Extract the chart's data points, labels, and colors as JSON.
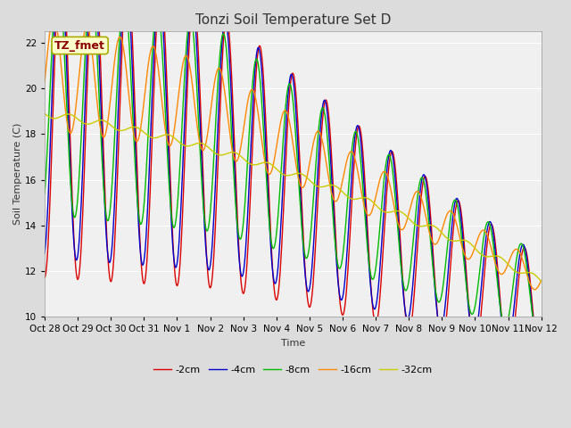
{
  "title": "Tonzi Soil Temperature Set D",
  "xlabel": "Time",
  "ylabel": "Soil Temperature (C)",
  "ylim": [
    10,
    22.5
  ],
  "annotation_text": "TZ_fmet",
  "annotation_color": "#8B0000",
  "annotation_bg": "#FFFFCC",
  "annotation_border": "#AAAA00",
  "series_colors": [
    "#DD0000",
    "#0000CC",
    "#00BB00",
    "#FF8800",
    "#CCCC00"
  ],
  "series_labels": [
    "-2cm",
    "-4cm",
    "-8cm",
    "-16cm",
    "-32cm"
  ],
  "tick_labels": [
    "Oct 28",
    "Oct 29",
    "Oct 30",
    "Oct 31",
    "Nov 1",
    "Nov 2",
    "Nov 3",
    "Nov 4",
    "Nov 5",
    "Nov 6",
    "Nov 7",
    "Nov 8",
    "Nov 9",
    "Nov 10",
    "Nov 11",
    "Nov 12"
  ],
  "bg_color": "#DCDCDC",
  "plot_bg": "#F0F0F0",
  "grid_color": "#FFFFFF",
  "linewidth": 1.0,
  "title_fontsize": 11,
  "axis_fontsize": 8,
  "tick_fontsize": 7.5
}
